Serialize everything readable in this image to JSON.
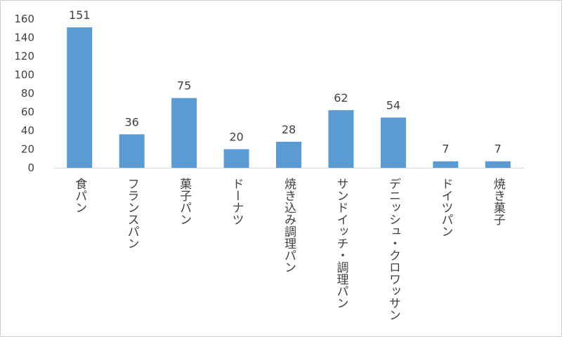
{
  "chart_data": {
    "type": "bar",
    "categories": [
      "食パン",
      "フランスパン",
      "菓子パン",
      "ドーナツ",
      "焼き込み調理パン",
      "サンドイッチ・調理パン",
      "デニッシュ・クロワッサン",
      "ドイツパン",
      "焼き菓子"
    ],
    "values": [
      151,
      36,
      75,
      20,
      28,
      62,
      54,
      7,
      7
    ],
    "data_labels": [
      "151",
      "36",
      "75",
      "20",
      "28",
      "62",
      "54",
      "7",
      "7"
    ],
    "y_ticks": [
      "0",
      "20",
      "40",
      "60",
      "80",
      "100",
      "120",
      "140",
      "160"
    ],
    "ylim": [
      0,
      160
    ],
    "title": "",
    "xlabel": "",
    "ylabel": "",
    "grid": false,
    "legend": "none",
    "colors": {
      "bar": "#5b9bd5",
      "axis": "#d9d9d9",
      "text": "#404040"
    }
  }
}
